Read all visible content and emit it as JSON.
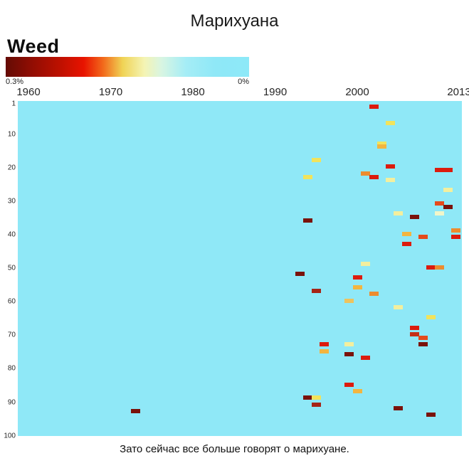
{
  "title": "Марихуана",
  "caption": "Зато сейчас все больше говорят о марихуане.",
  "legend": {
    "label": "Weed",
    "left_value": "0.3%",
    "right_value": "0%"
  },
  "colors": {
    "page_bg": "#ffffff",
    "plot_bg": "#8FE8F7",
    "gradient_dark_end": "#640B04",
    "gradient_light_end": "#8DE9F8"
  },
  "chart_data": {
    "type": "heatmap",
    "title": "Марихуана",
    "subtitle": "Зато сейчас все больше говорят о марихуане.",
    "colorbar": {
      "label": "Weed",
      "max_label": "0.3%",
      "min_label": "0%",
      "gradient": [
        "#640B04",
        "#BC1000",
        "#E81300",
        "#F2691B",
        "#F0D355",
        "#F4F4B4",
        "#D8F5E2",
        "#A5EDF6",
        "#8FE8F7"
      ]
    },
    "x_axis": {
      "range": [
        1960,
        2013
      ],
      "ticks": [
        1960,
        1970,
        1980,
        1990,
        2000,
        2013
      ]
    },
    "y_axis": {
      "range": [
        1,
        100
      ],
      "ticks": [
        1,
        10,
        20,
        30,
        40,
        50,
        60,
        70,
        80,
        90,
        100
      ]
    },
    "background_value": "0%",
    "grid": false,
    "legend_position": "top-left",
    "palette": {
      "maroon": "#7A120A",
      "brick": "#A62416",
      "red": "#DC1B0D",
      "red2": "#C52F16",
      "orangeRed": "#E54A1B",
      "orange": "#EC8C2F",
      "yellowOrange": "#F2B540",
      "tan": "#EDC35E",
      "yellow": "#F1E35C",
      "paleYellow": "#F3EF9E",
      "veryPale": "#F1F6C9"
    },
    "points": [
      {
        "year": 2002,
        "row": 2,
        "color": "red"
      },
      {
        "year": 2004,
        "row": 7,
        "color": "yellow"
      },
      {
        "year": 2003,
        "row": 13,
        "color": "yellow"
      },
      {
        "year": 2003,
        "row": 14,
        "color": "yellowOrange"
      },
      {
        "year": 1995,
        "row": 18,
        "color": "yellow"
      },
      {
        "year": 2004,
        "row": 20,
        "color": "red"
      },
      {
        "year": 2010,
        "row": 21,
        "color": "red",
        "span": 2
      },
      {
        "year": 2001,
        "row": 22,
        "color": "orange"
      },
      {
        "year": 1994,
        "row": 23,
        "color": "yellow"
      },
      {
        "year": 2002,
        "row": 23,
        "color": "red"
      },
      {
        "year": 2004,
        "row": 24,
        "color": "paleYellow"
      },
      {
        "year": 2011,
        "row": 27,
        "color": "paleYellow"
      },
      {
        "year": 2010,
        "row": 31,
        "color": "orangeRed"
      },
      {
        "year": 2011,
        "row": 32,
        "color": "maroon"
      },
      {
        "year": 2005,
        "row": 34,
        "color": "paleYellow"
      },
      {
        "year": 2010,
        "row": 34,
        "color": "veryPale"
      },
      {
        "year": 2007,
        "row": 35,
        "color": "maroon"
      },
      {
        "year": 1994,
        "row": 36,
        "color": "maroon"
      },
      {
        "year": 2012,
        "row": 39,
        "color": "orange"
      },
      {
        "year": 2006,
        "row": 40,
        "color": "yellowOrange"
      },
      {
        "year": 2008,
        "row": 41,
        "color": "orangeRed"
      },
      {
        "year": 2012,
        "row": 41,
        "color": "red"
      },
      {
        "year": 2006,
        "row": 43,
        "color": "red"
      },
      {
        "year": 2001,
        "row": 49,
        "color": "paleYellow"
      },
      {
        "year": 2009,
        "row": 50,
        "color": "red"
      },
      {
        "year": 2010,
        "row": 50,
        "color": "orange"
      },
      {
        "year": 1993,
        "row": 52,
        "color": "maroon"
      },
      {
        "year": 2000,
        "row": 53,
        "color": "red"
      },
      {
        "year": 2000,
        "row": 56,
        "color": "yellowOrange"
      },
      {
        "year": 1995,
        "row": 57,
        "color": "brick"
      },
      {
        "year": 2002,
        "row": 58,
        "color": "orange"
      },
      {
        "year": 1999,
        "row": 60,
        "color": "tan"
      },
      {
        "year": 2005,
        "row": 62,
        "color": "paleYellow"
      },
      {
        "year": 2009,
        "row": 65,
        "color": "yellow"
      },
      {
        "year": 2007,
        "row": 68,
        "color": "red"
      },
      {
        "year": 2007,
        "row": 70,
        "color": "red2"
      },
      {
        "year": 2008,
        "row": 71,
        "color": "orangeRed"
      },
      {
        "year": 1996,
        "row": 73,
        "color": "red"
      },
      {
        "year": 1999,
        "row": 73,
        "color": "paleYellow"
      },
      {
        "year": 2008,
        "row": 73,
        "color": "maroon"
      },
      {
        "year": 1996,
        "row": 75,
        "color": "yellowOrange"
      },
      {
        "year": 1999,
        "row": 76,
        "color": "maroon"
      },
      {
        "year": 2001,
        "row": 77,
        "color": "red"
      },
      {
        "year": 1999,
        "row": 85,
        "color": "red"
      },
      {
        "year": 2000,
        "row": 87,
        "color": "yellowOrange"
      },
      {
        "year": 1994,
        "row": 89,
        "color": "maroon"
      },
      {
        "year": 1995,
        "row": 89,
        "color": "yellow"
      },
      {
        "year": 1995,
        "row": 91,
        "color": "brick"
      },
      {
        "year": 2005,
        "row": 92,
        "color": "maroon"
      },
      {
        "year": 1973,
        "row": 93,
        "color": "maroon"
      },
      {
        "year": 2009,
        "row": 94,
        "color": "maroon"
      }
    ]
  }
}
